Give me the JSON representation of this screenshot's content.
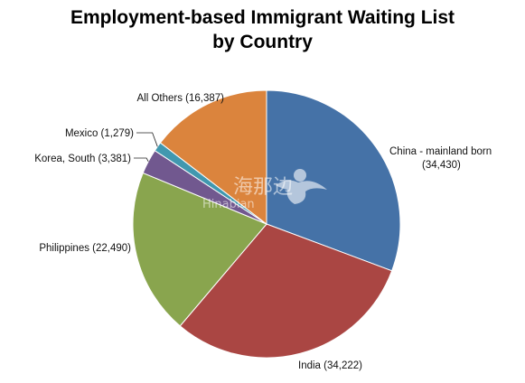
{
  "chart_data": {
    "type": "pie",
    "title": "Employment-based Immigrant Waiting List by Country",
    "title_lines": [
      "Employment-based Immigrant Waiting List",
      "by Country"
    ],
    "slices": [
      {
        "label": "China - mainland born",
        "value": 34430,
        "display": "(34,430)",
        "color": "#4572A7"
      },
      {
        "label": "India",
        "value": 34222,
        "display": "(34,222)",
        "color": "#AA4643"
      },
      {
        "label": "Philippines",
        "value": 22490,
        "display": "(22,490)",
        "color": "#89A54E"
      },
      {
        "label": "Korea, South",
        "value": 3381,
        "display": "(3,381)",
        "color": "#71588F"
      },
      {
        "label": "Mexico",
        "value": 1279,
        "display": "(1,279)",
        "color": "#4198AF"
      },
      {
        "label": "All Others",
        "value": 16387,
        "display": "(16,387)",
        "color": "#DB843D"
      }
    ],
    "start": "12 o'clock",
    "direction": "clockwise",
    "legend": "none",
    "data_labels": "outside"
  },
  "watermark": {
    "text_cn": "海那边",
    "text_en": "Hinabian",
    "icon": "bird-logo-icon"
  }
}
